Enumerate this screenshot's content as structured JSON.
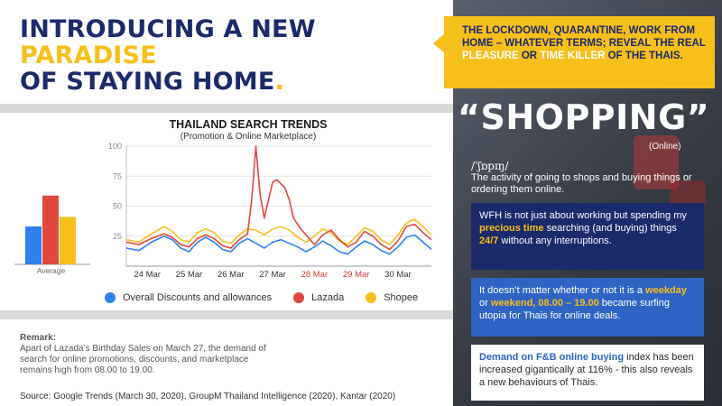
{
  "headline": {
    "line1": "INTRODUCING A NEW",
    "line2": "PARADISE",
    "line3": "OF STAYING HOME",
    "dot": "."
  },
  "callout": {
    "p1": "THE LOCKDOWN, QUARANTINE, WORK FROM HOME – WHATEVER TERMS; REVEAL THE REAL ",
    "h1": "PLEASURE",
    "p2": " OR ",
    "h2": "TIME KILLER",
    "p3": " OF THE THAIS."
  },
  "definition": {
    "word": "“SHOPPING”",
    "tag": "(Online)",
    "phonetic": "/ˈʃɒpɪŋ/",
    "text": "The activity of going to shops and buying things or ordering them online."
  },
  "box1": {
    "p1": "WFH is not just about working but spending my ",
    "h1": "precious time",
    "p2": " searching (and buying) things ",
    "h2": "24/7",
    "p3": " without any interruptions."
  },
  "box2": {
    "p1": "It doesn’t matter whether or not it is a ",
    "h1": "weekday",
    "p2": " or ",
    "h2": "weekend, 08.00 – 19.00",
    "p3": " became surfing utopia for Thais for online deals."
  },
  "box3": {
    "h1": "Demand on F&B online buying",
    "p1": " index has been increased gigantically at 116% - this also reveals a new behaviours of Thais."
  },
  "remark": {
    "title": "Remark:",
    "body": "Apart of Lazada’s Birthday Sales on March 27, the demand of search for online promotions, discounts, and marketplace remains high from 08.00 to 19.00."
  },
  "source": "Source: Google Trends (March 30, 2020), GroupM Thailand Intelligence (2020), Kantar (2020)",
  "colors": {
    "navy": "#1b2a6b",
    "yellow": "#f7bf19",
    "blue_box": "#2f63c4",
    "discounts": "#2f80ed",
    "lazada": "#e0483c",
    "shopee": "#f7bf19"
  },
  "chart_data": [
    {
      "type": "line",
      "title": "THAILAND SEARCH TRENDS",
      "subtitle": "(Promotion & Online Marketplace)",
      "yticks": [
        25,
        50,
        75,
        100
      ],
      "ylim": [
        0,
        100
      ],
      "xlim": [
        0,
        7.3
      ],
      "xticks": [
        {
          "label": "24 Mar",
          "x": 0.5,
          "color": "#333333"
        },
        {
          "label": "25 Mar",
          "x": 1.5,
          "color": "#333333"
        },
        {
          "label": "26 Mar",
          "x": 2.5,
          "color": "#333333"
        },
        {
          "label": "27 Mar",
          "x": 3.5,
          "color": "#333333"
        },
        {
          "label": "28 Mar",
          "x": 4.5,
          "color": "#d13b2f"
        },
        {
          "label": "29 Mar",
          "x": 5.5,
          "color": "#d13b2f"
        },
        {
          "label": "30 Mar",
          "x": 6.5,
          "color": "#333333"
        }
      ],
      "grid": true,
      "legend_position": "bottom",
      "series": [
        {
          "name": "Overall Discounts and allowances",
          "color": "#2f80ed",
          "values": [
            [
              0.0,
              15
            ],
            [
              0.3,
              13
            ],
            [
              0.6,
              20
            ],
            [
              0.9,
              25
            ],
            [
              1.1,
              22
            ],
            [
              1.3,
              15
            ],
            [
              1.5,
              12
            ],
            [
              1.7,
              20
            ],
            [
              1.9,
              24
            ],
            [
              2.1,
              20
            ],
            [
              2.3,
              14
            ],
            [
              2.5,
              12
            ],
            [
              2.7,
              19
            ],
            [
              2.9,
              23
            ],
            [
              3.1,
              19
            ],
            [
              3.3,
              15
            ],
            [
              3.5,
              20
            ],
            [
              3.7,
              22
            ],
            [
              3.9,
              19
            ],
            [
              4.1,
              16
            ],
            [
              4.3,
              12
            ],
            [
              4.5,
              16
            ],
            [
              4.7,
              21
            ],
            [
              4.9,
              17
            ],
            [
              5.1,
              12
            ],
            [
              5.3,
              10
            ],
            [
              5.5,
              16
            ],
            [
              5.7,
              21
            ],
            [
              5.9,
              18
            ],
            [
              6.1,
              13
            ],
            [
              6.3,
              10
            ],
            [
              6.5,
              16
            ],
            [
              6.7,
              24
            ],
            [
              6.9,
              26
            ],
            [
              7.1,
              20
            ],
            [
              7.3,
              14
            ]
          ]
        },
        {
          "name": "Lazada",
          "color": "#e0483c",
          "values": [
            [
              0.0,
              20
            ],
            [
              0.3,
              18
            ],
            [
              0.6,
              23
            ],
            [
              0.9,
              27
            ],
            [
              1.1,
              24
            ],
            [
              1.3,
              18
            ],
            [
              1.5,
              16
            ],
            [
              1.7,
              23
            ],
            [
              1.9,
              26
            ],
            [
              2.1,
              23
            ],
            [
              2.3,
              17
            ],
            [
              2.5,
              15
            ],
            [
              2.7,
              22
            ],
            [
              2.9,
              27
            ],
            [
              3.0,
              55
            ],
            [
              3.1,
              100
            ],
            [
              3.2,
              60
            ],
            [
              3.3,
              40
            ],
            [
              3.5,
              70
            ],
            [
              3.6,
              72
            ],
            [
              3.8,
              65
            ],
            [
              3.9,
              55
            ],
            [
              4.0,
              40
            ],
            [
              4.2,
              30
            ],
            [
              4.4,
              22
            ],
            [
              4.5,
              18
            ],
            [
              4.7,
              26
            ],
            [
              4.9,
              30
            ],
            [
              5.1,
              22
            ],
            [
              5.3,
              16
            ],
            [
              5.5,
              20
            ],
            [
              5.7,
              29
            ],
            [
              5.9,
              25
            ],
            [
              6.1,
              18
            ],
            [
              6.3,
              14
            ],
            [
              6.5,
              21
            ],
            [
              6.7,
              33
            ],
            [
              6.9,
              35
            ],
            [
              7.1,
              28
            ],
            [
              7.3,
              22
            ]
          ]
        },
        {
          "name": "Shopee",
          "color": "#f7bf19",
          "values": [
            [
              0.0,
              22
            ],
            [
              0.3,
              20
            ],
            [
              0.6,
              27
            ],
            [
              0.9,
              33
            ],
            [
              1.1,
              29
            ],
            [
              1.3,
              22
            ],
            [
              1.5,
              20
            ],
            [
              1.7,
              28
            ],
            [
              1.9,
              31
            ],
            [
              2.1,
              28
            ],
            [
              2.3,
              21
            ],
            [
              2.5,
              19
            ],
            [
              2.7,
              26
            ],
            [
              2.9,
              31
            ],
            [
              3.1,
              30
            ],
            [
              3.3,
              26
            ],
            [
              3.5,
              31
            ],
            [
              3.7,
              33
            ],
            [
              3.9,
              30
            ],
            [
              4.1,
              24
            ],
            [
              4.3,
              20
            ],
            [
              4.5,
              25
            ],
            [
              4.7,
              31
            ],
            [
              4.9,
              28
            ],
            [
              5.1,
              21
            ],
            [
              5.3,
              18
            ],
            [
              5.5,
              25
            ],
            [
              5.7,
              32
            ],
            [
              5.9,
              29
            ],
            [
              6.1,
              22
            ],
            [
              6.3,
              18
            ],
            [
              6.5,
              26
            ],
            [
              6.7,
              36
            ],
            [
              6.9,
              39
            ],
            [
              7.1,
              33
            ],
            [
              7.3,
              26
            ]
          ]
        }
      ]
    },
    {
      "type": "bar",
      "title": "",
      "xlabel": "Average",
      "categories": [
        "Overall Discounts and allowances",
        "Lazada",
        "Shopee"
      ],
      "values": [
        16,
        29,
        20
      ],
      "colors": [
        "#2f80ed",
        "#e0483c",
        "#f7bf19"
      ],
      "ylim": [
        0,
        35
      ]
    }
  ]
}
